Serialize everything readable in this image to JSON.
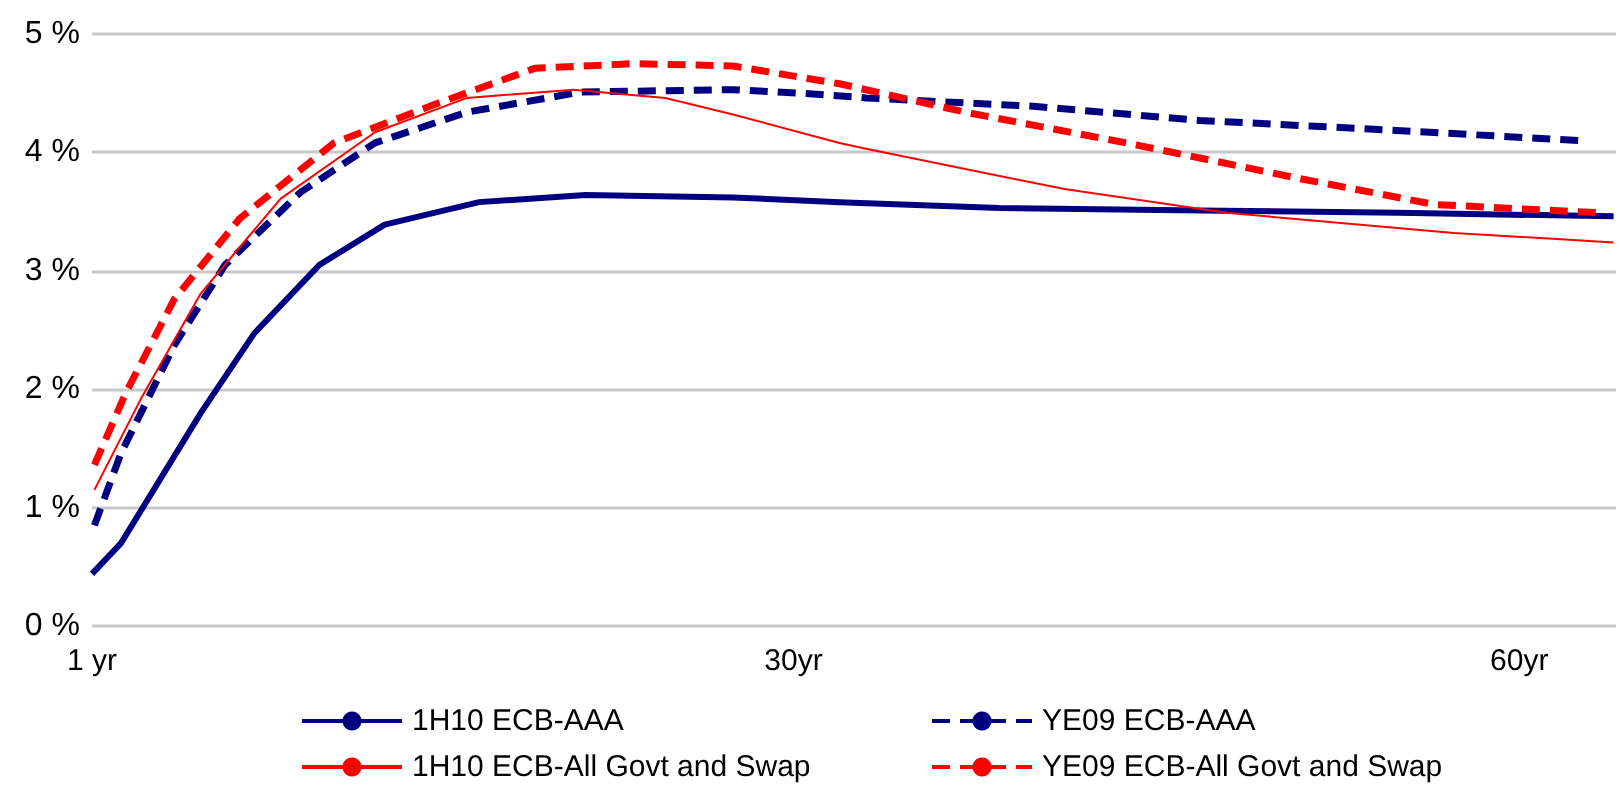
{
  "chart_data": {
    "type": "line",
    "xlim": [
      1,
      64
    ],
    "xticks": [
      {
        "value": 1,
        "label": "1 yr"
      },
      {
        "value": 30,
        "label": "30yr"
      },
      {
        "value": 60,
        "label": "60yr"
      }
    ],
    "ylim": [
      0,
      5
    ],
    "yticks": [
      {
        "value": 0,
        "label": "0 %"
      },
      {
        "value": 1,
        "label": "1 %"
      },
      {
        "value": 2,
        "label": "2 %"
      },
      {
        "value": 3,
        "label": "3 %"
      },
      {
        "value": 4,
        "label": "4 %"
      },
      {
        "value": 5,
        "label": "5 %"
      }
    ],
    "grid": "y",
    "legend": "bottom",
    "marker": "none",
    "series": [
      {
        "name": "1H10 ECB-AAA",
        "color": "#000080",
        "line_style": "solid",
        "x": [
          1,
          2.2,
          5.5,
          7.7,
          10.4,
          13.1,
          17,
          21.4,
          27.5,
          31.9,
          38.5,
          46.8,
          55,
          63.9
        ],
        "values": [
          0.44,
          0.7,
          1.8,
          2.47,
          3.05,
          3.39,
          3.58,
          3.64,
          3.62,
          3.58,
          3.53,
          3.51,
          3.49,
          3.46
        ]
      },
      {
        "name": "YE09 ECB-AAA",
        "color": "#000080",
        "line_style": "dashed",
        "x": [
          1.1,
          2.2,
          4.4,
          6.5,
          9.6,
          12.7,
          16.5,
          21.2,
          27.5,
          31.1,
          33,
          39.9,
          46.8,
          53.6,
          62.5
        ],
        "values": [
          0.85,
          1.46,
          2.37,
          3.05,
          3.66,
          4.08,
          4.34,
          4.51,
          4.53,
          4.49,
          4.46,
          4.39,
          4.27,
          4.2,
          4.1
        ]
      },
      {
        "name": "1H10 ECB-All Govt and Swap",
        "color": "#ff0000",
        "line_style": "solid",
        "x": [
          1.1,
          3,
          5.5,
          8.8,
          12.7,
          16.5,
          20.9,
          24.7,
          27.5,
          31.9,
          33,
          41.2,
          47.9,
          57.3,
          63.9
        ],
        "values": [
          1.15,
          1.91,
          2.81,
          3.61,
          4.17,
          4.46,
          4.53,
          4.46,
          4.32,
          4.08,
          4.03,
          3.69,
          3.49,
          3.32,
          3.24
        ]
      },
      {
        "name": "YE09 ECB-All Govt and Swap",
        "color": "#ff0000",
        "line_style": "dashed",
        "x": [
          1.1,
          2.4,
          4.4,
          7.1,
          11,
          15.1,
          19.3,
          23.4,
          27.5,
          31.9,
          37.1,
          44,
          50.9,
          56.5,
          63.3
        ],
        "values": [
          1.36,
          1.97,
          2.76,
          3.44,
          4.08,
          4.4,
          4.71,
          4.75,
          4.73,
          4.58,
          4.34,
          4.07,
          3.78,
          3.56,
          3.49
        ]
      }
    ]
  }
}
